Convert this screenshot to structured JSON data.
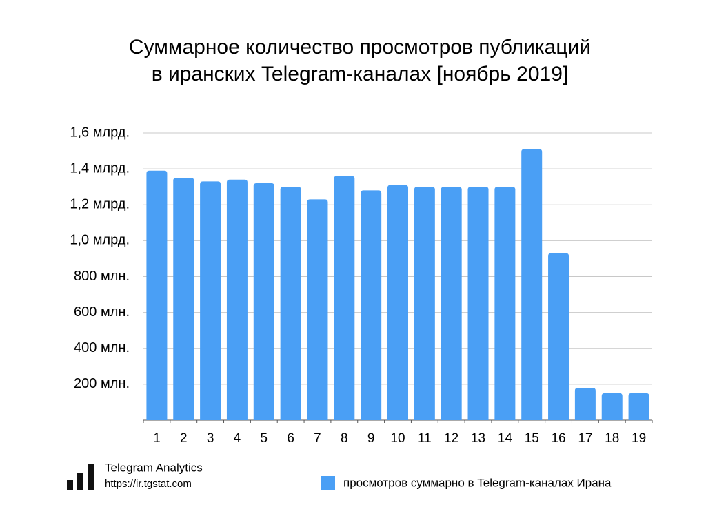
{
  "chart_data": {
    "type": "bar",
    "title": [
      "Суммарное количество просмотров публикаций",
      "в иранских Telegram-каналах [ноябрь 2019]"
    ],
    "categories": [
      "1",
      "2",
      "3",
      "4",
      "5",
      "6",
      "7",
      "8",
      "9",
      "10",
      "11",
      "12",
      "13",
      "14",
      "15",
      "16",
      "17",
      "18",
      "19"
    ],
    "series": [
      {
        "name": "просмотров суммарно в Telegram-каналах Ирана",
        "color": "#4a9ff5",
        "values": [
          1390000000,
          1350000000,
          1330000000,
          1340000000,
          1320000000,
          1300000000,
          1230000000,
          1360000000,
          1280000000,
          1310000000,
          1300000000,
          1300000000,
          1300000000,
          1300000000,
          1510000000,
          930000000,
          180000000,
          150000000,
          150000000
        ]
      }
    ],
    "ylim": [
      0,
      1600000000
    ],
    "yticks": [
      {
        "value": 200000000,
        "label": "200 млн."
      },
      {
        "value": 400000000,
        "label": "400 млн."
      },
      {
        "value": 600000000,
        "label": "600 млн."
      },
      {
        "value": 800000000,
        "label": "800 млн."
      },
      {
        "value": 1000000000,
        "label": "1,0 млрд."
      },
      {
        "value": 1200000000,
        "label": "1,2 млрд."
      },
      {
        "value": 1400000000,
        "label": "1,4 млрд."
      },
      {
        "value": 1600000000,
        "label": "1,6 млрд."
      }
    ],
    "grid": true,
    "legend": "bottom-right",
    "brand": {
      "name": "Telegram Analytics",
      "url": "https://ir.tgstat.com"
    }
  }
}
